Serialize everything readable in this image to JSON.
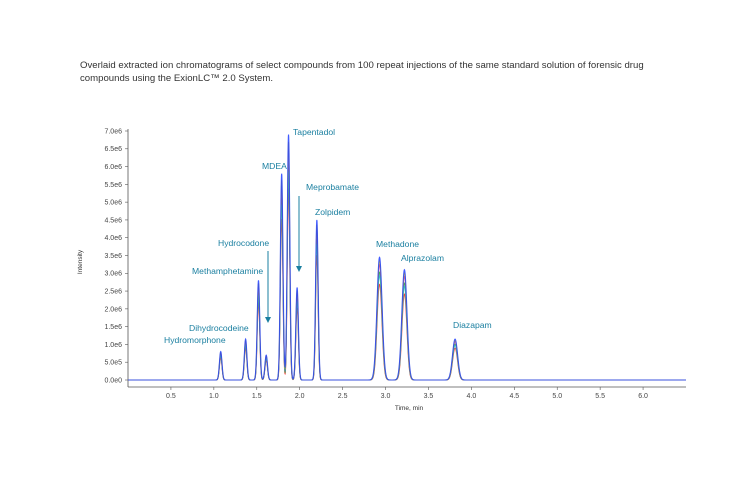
{
  "caption": "Overlaid extracted ion chromatograms of select compounds from 100 repeat injections of the same standard solution of forensic drug compounds using the ExionLC™ 2.0 System.",
  "chart_data": {
    "type": "line",
    "xlabel": "Time, min",
    "ylabel": "Intensity",
    "xlim": [
      0,
      6.5
    ],
    "ylim": [
      0,
      7000000
    ],
    "x_ticks": [
      0.5,
      1.0,
      1.5,
      2.0,
      2.5,
      3.0,
      3.5,
      4.0,
      4.5,
      5.0,
      5.5,
      6.0
    ],
    "x_tick_labels": [
      "0.5",
      "1.0",
      "1.5",
      "2.0",
      "2.5",
      "3.0",
      "3.5",
      "4.0",
      "4.5",
      "5.0",
      "5.5",
      "6.0"
    ],
    "y_ticks": [
      0,
      500000,
      1000000,
      1500000,
      2000000,
      2500000,
      3000000,
      3500000,
      4000000,
      4500000,
      5000000,
      5500000,
      6000000,
      6500000,
      7000000
    ],
    "y_tick_labels": [
      "0.0e0",
      "5.0e5",
      "1.0e6",
      "1.5e6",
      "2.0e6",
      "2.5e6",
      "3.0e6",
      "3.5e6",
      "4.0e6",
      "4.5e6",
      "5.0e6",
      "5.5e6",
      "6.0e6",
      "6.5e6",
      "7.0e6"
    ],
    "peaks": [
      {
        "name": "Hydromorphone",
        "rt": 1.08,
        "height": 800000
      },
      {
        "name": "Dihydrocodeine",
        "rt": 1.37,
        "height": 1150000
      },
      {
        "name": "Methamphetamine",
        "rt": 1.52,
        "height": 2800000
      },
      {
        "name": "Hydrocodone",
        "rt": 1.61,
        "height": 700000
      },
      {
        "name": "MDEA",
        "rt": 1.79,
        "height": 5800000
      },
      {
        "name": "Tapentadol",
        "rt": 1.87,
        "height": 6900000
      },
      {
        "name": "Meprobamate",
        "rt": 1.97,
        "height": 2600000
      },
      {
        "name": "Zolpidem",
        "rt": 2.2,
        "height": 4500000
      },
      {
        "name": "Methadone",
        "rt": 2.93,
        "height": 3450000
      },
      {
        "name": "Alprazolam",
        "rt": 3.22,
        "height": 3100000
      },
      {
        "name": "Diazapam",
        "rt": 3.81,
        "height": 1150000
      }
    ],
    "series_colors": [
      "#ff2020",
      "#20b040",
      "#c020c0",
      "#20c0c0",
      "#e0c000",
      "#2040ff"
    ]
  }
}
